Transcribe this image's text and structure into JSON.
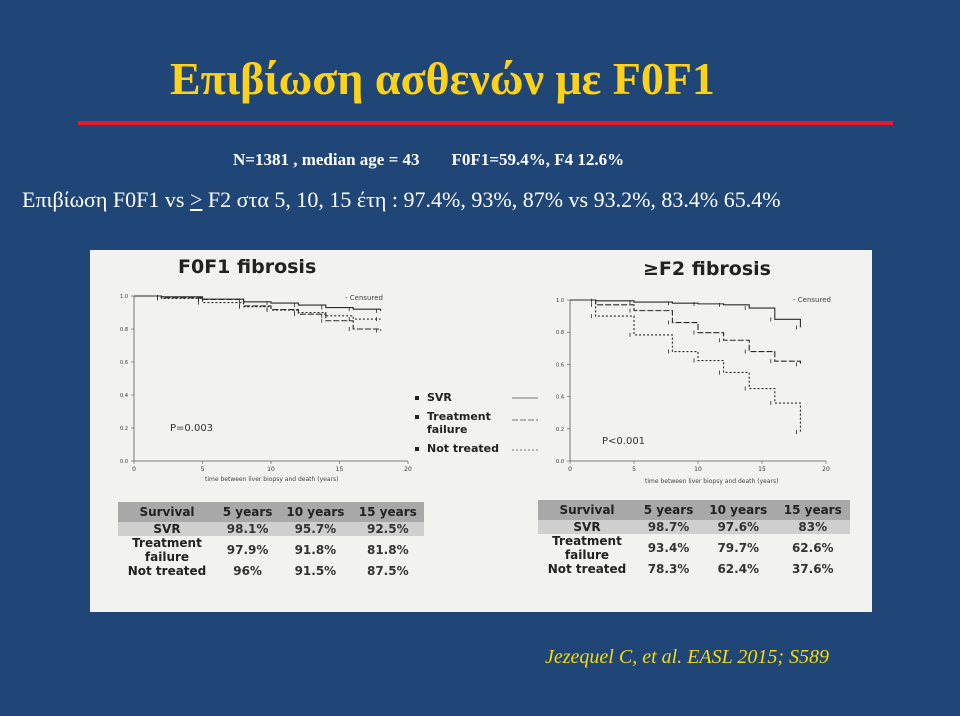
{
  "slide": {
    "title": "Επιβίωση ασθενών με F0F1",
    "stats_a": "N=1381 , median age = 43",
    "stats_b": "F0F1=59.4%, F4 12.6%",
    "survival_prefix": "Επιβίωση F0F1 vs ",
    "survival_ge": ">",
    "survival_rest": " F2 στα 5, 10, 15 έτη : 97.4%, 93%, 87% vs 93.2%, 83.4% 65.4%",
    "citation": "Jezequel C, et al.  EASL 2015; S589"
  },
  "figure": {
    "legend": [
      {
        "label": "SVR"
      },
      {
        "label": "Treatment failure"
      },
      {
        "label": "Not treated"
      }
    ],
    "censored_label": "Censured",
    "x_caption": "time between liver biopsy and death (years)"
  },
  "chart_data": [
    {
      "type": "line",
      "title": "F0F1 fibrosis",
      "annotation": "P=0.003",
      "xlabel": "time between liver biopsy and death (years)",
      "ylabel": "",
      "xlim": [
        0,
        20
      ],
      "ylim": [
        0,
        1.0
      ],
      "x_ticks": [
        "0",
        "5",
        "10",
        "15",
        "20"
      ],
      "y_ticks": [
        "0.0",
        "0.2",
        "0.4",
        "0.6",
        "0.8",
        "1.0"
      ],
      "series": [
        {
          "name": "SVR",
          "x": [
            0,
            2,
            5,
            8,
            10,
            12,
            14,
            16,
            18
          ],
          "y": [
            1.0,
            0.995,
            0.981,
            0.965,
            0.957,
            0.945,
            0.93,
            0.92,
            0.91
          ]
        },
        {
          "name": "Treatment failure",
          "x": [
            0,
            2,
            5,
            8,
            10,
            12,
            14,
            16,
            18
          ],
          "y": [
            1.0,
            0.99,
            0.979,
            0.94,
            0.918,
            0.89,
            0.85,
            0.8,
            0.79
          ]
        },
        {
          "name": "Not treated",
          "x": [
            0,
            2,
            5,
            8,
            10,
            12,
            14,
            16,
            18
          ],
          "y": [
            1.0,
            0.985,
            0.96,
            0.935,
            0.915,
            0.9,
            0.88,
            0.86,
            0.86
          ]
        }
      ],
      "table": {
        "headers": [
          "Survival",
          "5 years",
          "10 years",
          "15 years"
        ],
        "rows": [
          [
            "SVR",
            "98.1%",
            "95.7%",
            "92.5%"
          ],
          [
            "Treatment failure",
            "97.9%",
            "91.8%",
            "81.8%"
          ],
          [
            "Not treated",
            "96%",
            "91.5%",
            "87.5%"
          ]
        ]
      }
    },
    {
      "type": "line",
      "title": "≥F2 fibrosis",
      "annotation": "P<0.001",
      "xlabel": "time between liver biopsy and death (years)",
      "ylabel": "",
      "xlim": [
        0,
        20
      ],
      "ylim": [
        0,
        1.0
      ],
      "x_ticks": [
        "0",
        "5",
        "10",
        "15",
        "20"
      ],
      "y_ticks": [
        "0.0",
        "0.2",
        "0.4",
        "0.6",
        "0.8",
        "1.0"
      ],
      "series": [
        {
          "name": "SVR",
          "x": [
            0,
            2,
            5,
            8,
            10,
            12,
            14,
            16,
            18
          ],
          "y": [
            1.0,
            0.995,
            0.987,
            0.98,
            0.976,
            0.97,
            0.95,
            0.88,
            0.83
          ]
        },
        {
          "name": "Treatment failure",
          "x": [
            0,
            2,
            5,
            8,
            10,
            12,
            14,
            16,
            18
          ],
          "y": [
            1.0,
            0.97,
            0.934,
            0.86,
            0.797,
            0.75,
            0.68,
            0.62,
            0.6
          ]
        },
        {
          "name": "Not treated",
          "x": [
            0,
            2,
            5,
            8,
            10,
            12,
            14,
            16,
            18
          ],
          "y": [
            1.0,
            0.9,
            0.783,
            0.68,
            0.624,
            0.55,
            0.45,
            0.36,
            0.18
          ]
        }
      ],
      "table": {
        "headers": [
          "Survival",
          "5 years",
          "10 years",
          "15 years"
        ],
        "rows": [
          [
            "SVR",
            "98.7%",
            "97.6%",
            "83%"
          ],
          [
            "Treatment failure",
            "93.4%",
            "79.7%",
            "62.6%"
          ],
          [
            "Not treated",
            "78.3%",
            "62.4%",
            "37.6%"
          ]
        ]
      }
    }
  ]
}
